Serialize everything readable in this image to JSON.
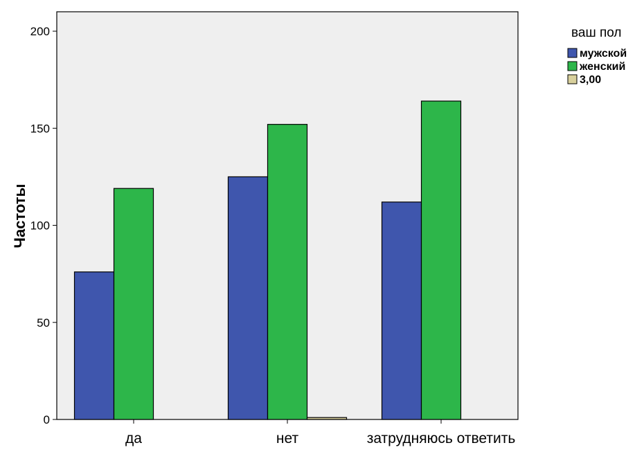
{
  "chart_data": {
    "type": "bar",
    "title": "",
    "xlabel": "",
    "ylabel": "Частоты",
    "categories": [
      "да",
      "нет",
      "затрудняюсь ответить"
    ],
    "series": [
      {
        "name": "мужской",
        "color": "#3f56ad",
        "values": [
          76,
          125,
          112
        ]
      },
      {
        "name": "женский",
        "color": "#2db64a",
        "values": [
          119,
          152,
          164
        ]
      },
      {
        "name": "3,00",
        "color": "#d8d09c",
        "values": [
          0,
          1,
          0
        ]
      }
    ],
    "ylim": [
      0,
      210
    ],
    "yticks": [
      0,
      50,
      100,
      150,
      200
    ],
    "legend": {
      "title": "ваш пол",
      "position": "right"
    },
    "grid": false,
    "plot_background": "#efefef"
  }
}
